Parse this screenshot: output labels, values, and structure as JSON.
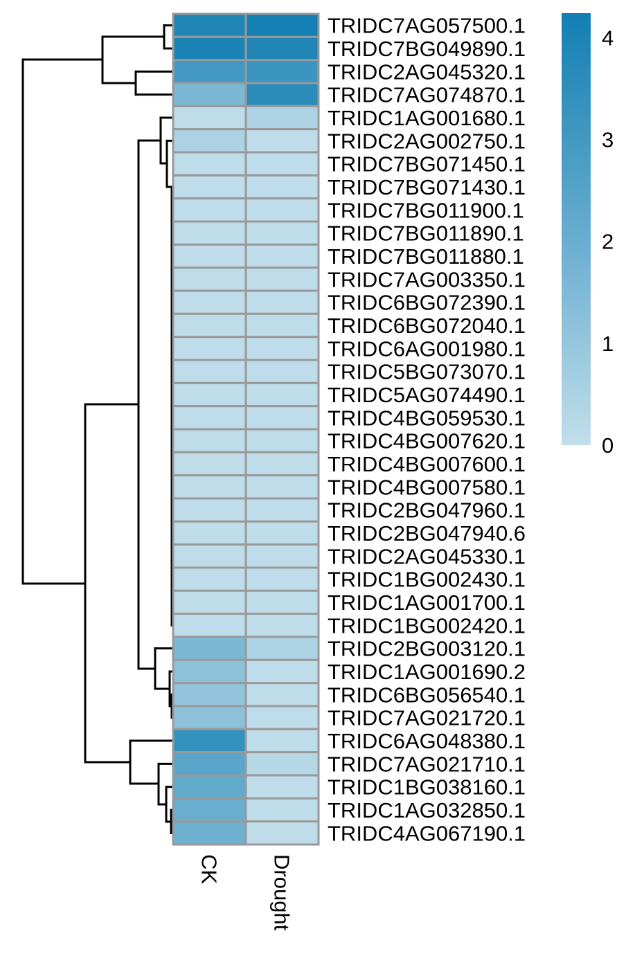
{
  "chart_data": {
    "type": "heatmap",
    "columns": [
      "CK",
      "Drought"
    ],
    "rows": [
      "TRIDC7AG057500.1",
      "TRIDC7BG049890.1",
      "TRIDC2AG045320.1",
      "TRIDC7AG074870.1",
      "TRIDC1AG001680.1",
      "TRIDC2AG002750.1",
      "TRIDC7BG071450.1",
      "TRIDC7BG071430.1",
      "TRIDC7BG011900.1",
      "TRIDC7BG011890.1",
      "TRIDC7BG011880.1",
      "TRIDC7AG003350.1",
      "TRIDC6BG072390.1",
      "TRIDC6BG072040.1",
      "TRIDC6AG001980.1",
      "TRIDC5BG073070.1",
      "TRIDC5AG074490.1",
      "TRIDC4BG059530.1",
      "TRIDC4BG007620.1",
      "TRIDC4BG007600.1",
      "TRIDC4BG007580.1",
      "TRIDC2BG047960.1",
      "TRIDC2BG047940.6",
      "TRIDC2AG045330.1",
      "TRIDC1BG002430.1",
      "TRIDC1AG001700.1",
      "TRIDC1BG002420.1",
      "TRIDC2BG003120.1",
      "TRIDC1AG001690.2",
      "TRIDC6BG056540.1",
      "TRIDC7AG021720.1",
      "TRIDC6AG048380.1",
      "TRIDC7AG021710.1",
      "TRIDC1BG038160.1",
      "TRIDC1AG032850.1",
      "TRIDC4AG067190.1"
    ],
    "values": [
      [
        3.9,
        4.2
      ],
      [
        4.0,
        3.9
      ],
      [
        3.0,
        3.2
      ],
      [
        1.6,
        3.6
      ],
      [
        0.1,
        0.5
      ],
      [
        0.5,
        0.1
      ],
      [
        0.1,
        0.1
      ],
      [
        0.1,
        0.1
      ],
      [
        0.1,
        0.1
      ],
      [
        0.1,
        0.1
      ],
      [
        0.1,
        0.1
      ],
      [
        0.1,
        0.1
      ],
      [
        0.1,
        0.1
      ],
      [
        0.1,
        0.1
      ],
      [
        0.1,
        0.1
      ],
      [
        0.1,
        0.1
      ],
      [
        0.1,
        0.1
      ],
      [
        0.1,
        0.1
      ],
      [
        0.1,
        0.1
      ],
      [
        0.1,
        0.1
      ],
      [
        0.1,
        0.1
      ],
      [
        0.1,
        0.1
      ],
      [
        0.1,
        0.1
      ],
      [
        0.1,
        0.1
      ],
      [
        0.1,
        0.1
      ],
      [
        0.1,
        0.1
      ],
      [
        0.1,
        0.1
      ],
      [
        1.6,
        0.5
      ],
      [
        1.2,
        0.1
      ],
      [
        1.1,
        0.1
      ],
      [
        1.2,
        0.1
      ],
      [
        3.4,
        0.1
      ],
      [
        2.4,
        0.3
      ],
      [
        2.2,
        0.1
      ],
      [
        2.0,
        0.1
      ],
      [
        1.9,
        0.1
      ]
    ],
    "colorbar": {
      "ticks": [
        "0",
        "1",
        "2",
        "3",
        "4"
      ],
      "range": [
        0,
        4.24
      ]
    },
    "colors": {
      "low": "#c2deea",
      "mid": "#6aaecf",
      "high": "#127fb2",
      "grid": "#999999"
    },
    "row_dendrogram": true
  }
}
